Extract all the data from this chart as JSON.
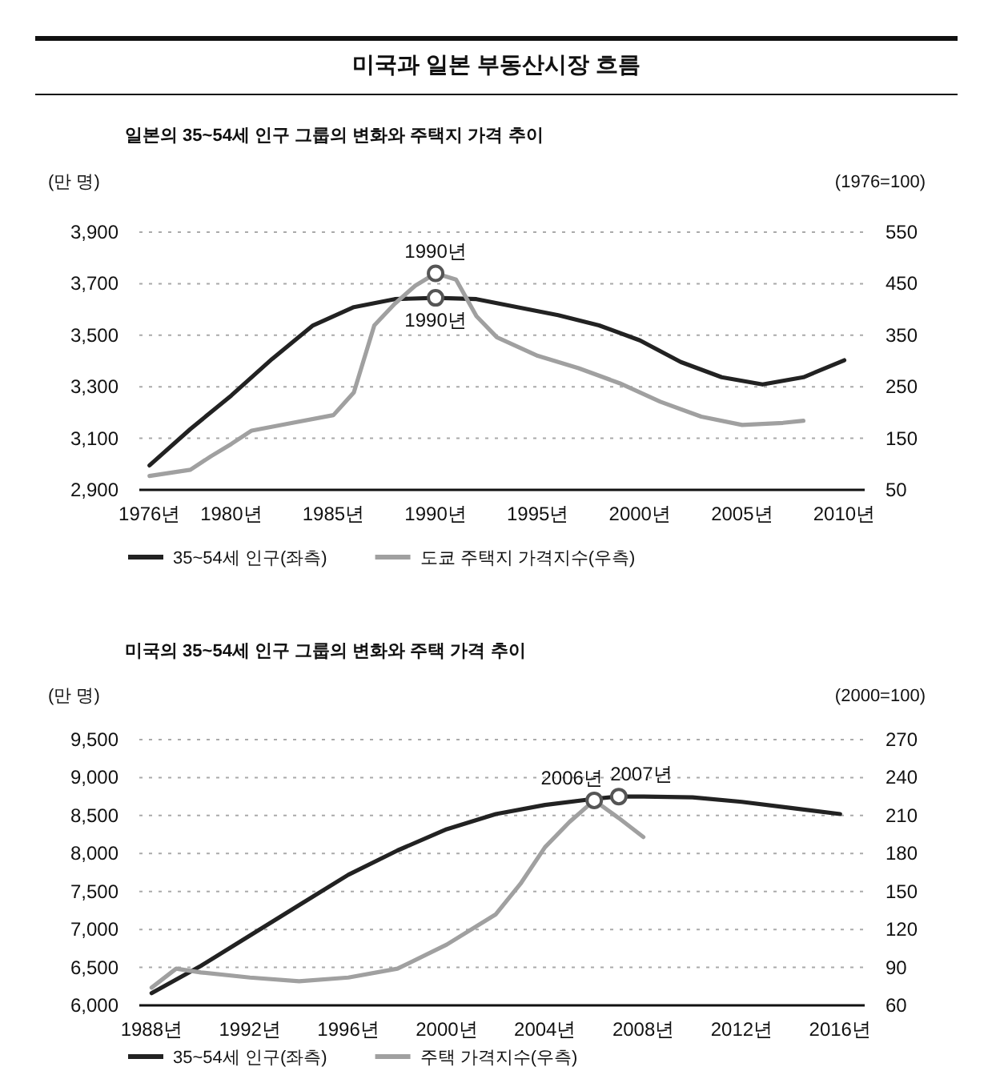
{
  "chart_data": [
    {
      "type": "line",
      "title": "미국과 일본 부동산시장 흐름",
      "subtitle": "일본의 35~54세 인구 그룹의 변화와 주택지 가격 추이",
      "ylabel": "(만 명)",
      "y2label": "(1976=100)",
      "xlim": [
        1975.5,
        2011
      ],
      "xticks": [
        {
          "value": 1976,
          "label": "1976년"
        },
        {
          "value": 1980,
          "label": "1980년"
        },
        {
          "value": 1985,
          "label": "1985년"
        },
        {
          "value": 1990,
          "label": "1990년"
        },
        {
          "value": 1995,
          "label": "1995년"
        },
        {
          "value": 2000,
          "label": "2000년"
        },
        {
          "value": 2005,
          "label": "2005년"
        },
        {
          "value": 2010,
          "label": "2010년"
        }
      ],
      "ylim": [
        2900,
        3900
      ],
      "yticks": [
        {
          "value": 2900,
          "label": "2,900"
        },
        {
          "value": 3100,
          "label": "3,100"
        },
        {
          "value": 3300,
          "label": "3,300"
        },
        {
          "value": 3500,
          "label": "3,500"
        },
        {
          "value": 3700,
          "label": "3,700"
        },
        {
          "value": 3900,
          "label": "3,900"
        }
      ],
      "y2lim": [
        50,
        550
      ],
      "y2ticks": [
        50,
        150,
        250,
        350,
        450,
        550
      ],
      "grid": "y",
      "legend": "bottom",
      "line_style": "solid",
      "series": [
        {
          "name": "35~54세 인구(좌측)",
          "color": "#222222",
          "x": [
            1976,
            1978,
            1980,
            1982,
            1984,
            1986,
            1988,
            1990,
            1992,
            1994,
            1996,
            1998,
            2000,
            2002,
            2004,
            2006,
            2008,
            2010
          ],
          "values": [
            2995,
            3136,
            3266,
            3408,
            3538,
            3609,
            3640,
            3645,
            3640,
            3609,
            3578,
            3538,
            3480,
            3396,
            3337,
            3309,
            3337,
            3403
          ]
        },
        {
          "name": "도쿄 주택지 가격지수(우측)",
          "color": "#a0a0a0",
          "axis": "y2",
          "x": [
            1976,
            1978,
            1979,
            1980,
            1981,
            1983,
            1985,
            1986,
            1987,
            1988,
            1989,
            1990,
            1991,
            1992,
            1993,
            1995,
            1997,
            1999,
            2001,
            2003,
            2005,
            2007,
            2008
          ],
          "values": [
            77,
            89,
            115,
            139,
            165,
            180,
            195,
            239,
            369,
            411,
            446,
            470,
            458,
            387,
            346,
            310,
            286,
            257,
            221,
            192,
            176,
            180,
            184
          ]
        }
      ],
      "annotations": [
        {
          "text": "1990년",
          "x": 1990,
          "y": 3740
        },
        {
          "text": "1990년",
          "x": 1990,
          "y": 3645
        }
      ]
    },
    {
      "type": "line",
      "title": "미국의 35~54세 인구 그룹의 변화와 주택 가격 추이",
      "ylabel": "(만 명)",
      "y2label": "(2000=100)",
      "xlim": [
        1987.5,
        2017
      ],
      "xticks": [
        {
          "value": 1988,
          "label": "1988년"
        },
        {
          "value": 1992,
          "label": "1992년"
        },
        {
          "value": 1996,
          "label": "1996년"
        },
        {
          "value": 2000,
          "label": "2000년"
        },
        {
          "value": 2004,
          "label": "2004년"
        },
        {
          "value": 2008,
          "label": "2008년"
        },
        {
          "value": 2012,
          "label": "2012년"
        },
        {
          "value": 2016,
          "label": "2016년"
        }
      ],
      "ylim": [
        6000,
        9500
      ],
      "yticks": [
        {
          "value": 6000,
          "label": "6,000"
        },
        {
          "value": 6500,
          "label": "6,500"
        },
        {
          "value": 7000,
          "label": "7,000"
        },
        {
          "value": 7500,
          "label": "7,500"
        },
        {
          "value": 8000,
          "label": "8,000"
        },
        {
          "value": 8500,
          "label": "8,500"
        },
        {
          "value": 9000,
          "label": "9,000"
        },
        {
          "value": 9500,
          "label": "9,500"
        }
      ],
      "y2lim": [
        60,
        270
      ],
      "y2ticks": [
        60,
        90,
        120,
        150,
        180,
        210,
        240,
        270
      ],
      "grid": "y",
      "legend": "bottom",
      "line_style": "solid",
      "series": [
        {
          "name": "35~54세 인구(좌측)",
          "color": "#222222",
          "x": [
            1988,
            1990,
            1992,
            1994,
            1996,
            1998,
            2000,
            2002,
            2004,
            2006,
            2007,
            2008,
            2010,
            2012,
            2014,
            2016
          ],
          "values": [
            6160,
            6520,
            6920,
            7320,
            7720,
            8040,
            8320,
            8520,
            8640,
            8720,
            8750,
            8750,
            8740,
            8680,
            8600,
            8520
          ]
        },
        {
          "name": "주택 가격지수(우측)",
          "color": "#a0a0a0",
          "axis": "y2",
          "x": [
            1988,
            1989,
            1990,
            1992,
            1994,
            1996,
            1998,
            2000,
            2002,
            2003,
            2004,
            2005,
            2006,
            2007,
            2008
          ],
          "values": [
            74,
            89,
            86,
            82,
            79,
            82,
            89,
            108,
            132,
            156,
            185,
            205,
            222,
            208,
            193
          ]
        }
      ],
      "annotations": [
        {
          "text": "2006년",
          "x": 2006,
          "y": 8700
        },
        {
          "text": "2007년",
          "x": 2007,
          "y": 8750
        }
      ]
    }
  ]
}
